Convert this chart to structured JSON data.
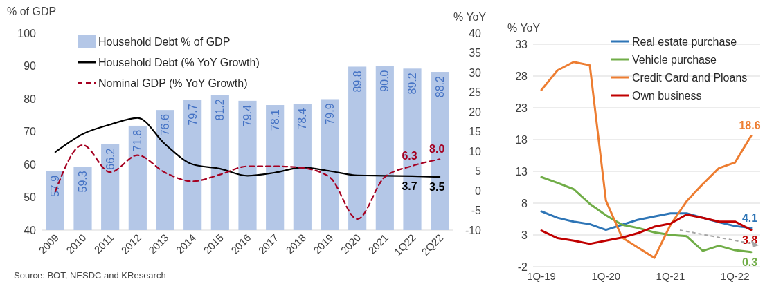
{
  "chart_data": [
    {
      "type": "bar",
      "ylabel": "% of GDP",
      "y2label": "% YoY",
      "categories": [
        "2009",
        "2010",
        "2011",
        "2012",
        "2013",
        "2014",
        "2015",
        "2016",
        "2017",
        "2018",
        "2019",
        "2020",
        "2021",
        "1Q22",
        "2Q22"
      ],
      "ylim": [
        40,
        100
      ],
      "yticks": [
        40,
        50,
        60,
        70,
        80,
        90,
        100
      ],
      "y2lim": [
        -10,
        40
      ],
      "y2ticks": [
        -10,
        -5,
        0,
        5,
        10,
        15,
        20,
        25,
        30,
        35,
        40
      ],
      "legend": "top left",
      "annotations": [
        "Source: BOT, NESDC and KResearch"
      ],
      "series": [
        {
          "name": "Household Debt % of GDP",
          "color": "#b4c7e7",
          "values": [
            57.9,
            59.3,
            66.2,
            71.8,
            76.6,
            79.7,
            81.2,
            79.4,
            78.1,
            78.4,
            79.9,
            89.8,
            90.0,
            89.2,
            88.2
          ],
          "value_labels": [
            "57.9",
            "59.3",
            "66.2",
            "71.8",
            "76.6",
            "79.7",
            "81.2",
            "79.4",
            "78.1",
            "78.4",
            "79.9",
            "89.8",
            "90.0",
            "89.2",
            "88.2"
          ]
        },
        {
          "name": "Household Debt (% YoY Growth)",
          "type": "line",
          "axis": "y2",
          "color": "#000000",
          "line_style": "solid",
          "values": [
            9.8,
            14.4,
            16.8,
            18.5,
            11.8,
            6.7,
            5.6,
            3.8,
            4.6,
            5.9,
            5.0,
            3.9,
            3.8,
            3.7,
            3.5
          ],
          "value_labels": [
            null,
            null,
            null,
            null,
            null,
            null,
            null,
            null,
            null,
            null,
            null,
            null,
            null,
            "3.7",
            "3.5"
          ]
        },
        {
          "name": "Nominal GDP (% YoY Growth)",
          "type": "line",
          "axis": "y2",
          "color": "#a50021",
          "line_style": "dashed",
          "values": [
            -0.2,
            11.6,
            4.7,
            9.0,
            4.6,
            2.4,
            4.1,
            6.2,
            6.2,
            5.8,
            3.4,
            -7.2,
            3.5,
            6.3,
            8.0
          ],
          "value_labels": [
            null,
            null,
            null,
            null,
            null,
            null,
            null,
            null,
            null,
            null,
            null,
            null,
            null,
            "6.3",
            "8.0"
          ]
        }
      ]
    },
    {
      "type": "line",
      "ylabel": "% YoY",
      "categories": [
        "1Q-19",
        null,
        null,
        null,
        "1Q-20",
        null,
        null,
        null,
        "1Q-21",
        null,
        null,
        null,
        "1Q-22",
        null
      ],
      "ylim": [
        -2,
        33
      ],
      "yticks": [
        -2,
        3,
        8,
        13,
        18,
        23,
        28,
        33
      ],
      "grid": "y",
      "legend": "top right",
      "series": [
        {
          "name": "Real estate purchase",
          "color": "#2e75b6",
          "values": [
            6.7,
            5.7,
            5.1,
            4.7,
            3.8,
            4.6,
            5.4,
            5.9,
            6.4,
            6.4,
            5.7,
            5.0,
            4.4,
            4.1
          ],
          "value_labels": [
            null,
            null,
            null,
            null,
            null,
            null,
            null,
            null,
            null,
            null,
            null,
            null,
            null,
            "4.1"
          ]
        },
        {
          "name": "Vehicle purchase",
          "color": "#70ad47",
          "values": [
            12.1,
            11.2,
            10.2,
            7.9,
            6.1,
            4.6,
            4.1,
            3.4,
            3.0,
            2.8,
            0.5,
            1.3,
            0.6,
            0.3
          ],
          "value_labels": [
            null,
            null,
            null,
            null,
            null,
            null,
            null,
            null,
            null,
            null,
            null,
            null,
            null,
            "0.3"
          ]
        },
        {
          "name": "Credit Card and Ploans",
          "color": "#ed7d31",
          "values": [
            25.8,
            28.9,
            30.2,
            29.7,
            8.4,
            2.6,
            1.0,
            -0.6,
            4.6,
            8.3,
            11.0,
            13.5,
            14.4,
            18.6
          ],
          "value_labels": [
            null,
            null,
            null,
            null,
            null,
            null,
            null,
            null,
            null,
            null,
            null,
            null,
            null,
            "18.6"
          ]
        },
        {
          "name": "Own business",
          "color": "#c00000",
          "values": [
            3.7,
            2.5,
            2.1,
            1.6,
            2.1,
            2.6,
            3.3,
            4.3,
            4.8,
            6.2,
            5.7,
            5.1,
            5.1,
            3.8
          ],
          "value_labels": [
            null,
            null,
            null,
            null,
            null,
            null,
            null,
            null,
            null,
            null,
            null,
            null,
            null,
            "3.8"
          ]
        }
      ]
    }
  ]
}
